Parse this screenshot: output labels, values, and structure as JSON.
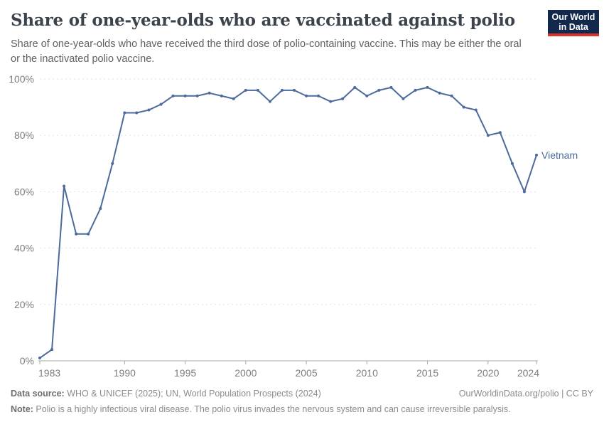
{
  "header": {
    "title": "Share of one-year-olds who are vaccinated against polio",
    "subtitle": "Share of one-year-olds who have received the third dose of polio-containing vaccine. This may be either the oral or the inactivated polio vaccine."
  },
  "logo": {
    "line1": "Our World",
    "line2": "in Data",
    "bg_color": "#12294d",
    "accent_color": "#d6352b"
  },
  "chart_data": {
    "type": "line",
    "title": "Share of one-year-olds who are vaccinated against polio",
    "xlabel": "",
    "ylabel": "",
    "xlim": [
      1983,
      2024
    ],
    "ylim": [
      0,
      100
    ],
    "grid": "horizontal-dashed",
    "legend_position": "entity-label-at-line-end",
    "x": [
      1983,
      1984,
      1985,
      1986,
      1987,
      1988,
      1989,
      1990,
      1991,
      1992,
      1993,
      1994,
      1995,
      1996,
      1997,
      1998,
      1999,
      2000,
      2001,
      2002,
      2003,
      2004,
      2005,
      2006,
      2007,
      2008,
      2009,
      2010,
      2011,
      2012,
      2013,
      2014,
      2015,
      2016,
      2017,
      2018,
      2019,
      2020,
      2021,
      2022,
      2023,
      2024
    ],
    "series": [
      {
        "name": "Vietnam",
        "color": "#4C6A9C",
        "values": [
          1,
          4,
          62,
          45,
          45,
          54,
          70,
          88,
          88,
          89,
          91,
          94,
          94,
          94,
          95,
          94,
          93,
          96,
          96,
          92,
          96,
          96,
          94,
          94,
          92,
          93,
          97,
          94,
          96,
          97,
          93,
          96,
          97,
          95,
          94,
          90,
          89,
          80,
          81,
          70,
          60,
          73
        ]
      }
    ],
    "yticks": [
      {
        "value": 0,
        "label": "0%"
      },
      {
        "value": 20,
        "label": "20%"
      },
      {
        "value": 40,
        "label": "40%"
      },
      {
        "value": 60,
        "label": "60%"
      },
      {
        "value": 80,
        "label": "80%"
      },
      {
        "value": 100,
        "label": "100%"
      }
    ],
    "xticks": [
      {
        "value": 1983,
        "label": "1983"
      },
      {
        "value": 1990,
        "label": "1990"
      },
      {
        "value": 1995,
        "label": "1995"
      },
      {
        "value": 2000,
        "label": "2000"
      },
      {
        "value": 2005,
        "label": "2005"
      },
      {
        "value": 2010,
        "label": "2010"
      },
      {
        "value": 2015,
        "label": "2015"
      },
      {
        "value": 2020,
        "label": "2020"
      },
      {
        "value": 2024,
        "label": "2024"
      }
    ],
    "colors": {
      "grid": "#e2e2e2",
      "axis": "#a8a8a8",
      "tick_label": "#7d7d7d"
    }
  },
  "footer": {
    "datasource_label": "Data source:",
    "datasource_text": " WHO & UNICEF (2025); UN, World Population Prospects (2024)",
    "credit": "OurWorldinData.org/polio | CC BY",
    "note_label": "Note:",
    "note_text": " Polio is a highly infectious viral disease. The polio virus invades the nervous system and can cause irreversible paralysis."
  }
}
